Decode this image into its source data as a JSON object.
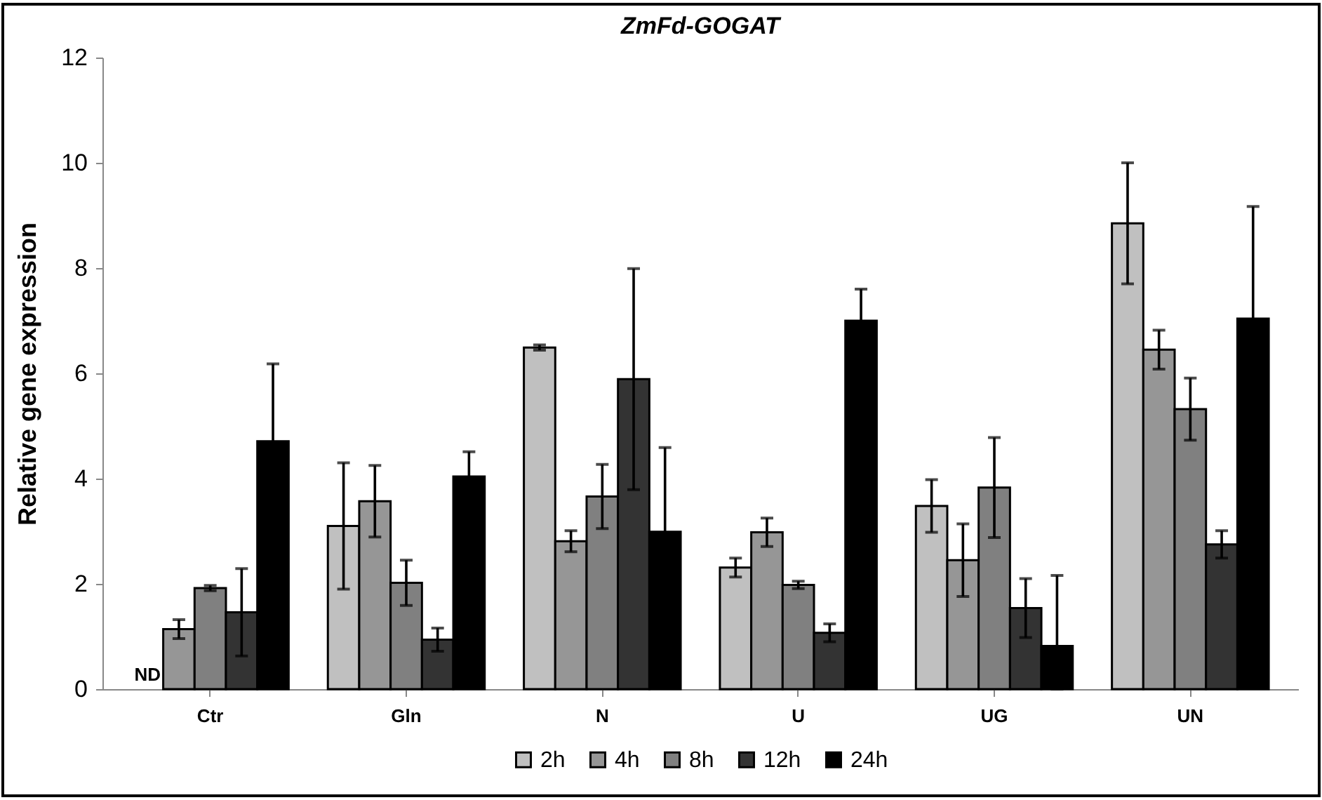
{
  "chart_data": {
    "type": "bar",
    "title": "ZmFd-GOGAT",
    "ylabel": "Relative gene expression",
    "categories": [
      "Ctr",
      "Gln",
      "N",
      "U",
      "UG",
      "UN"
    ],
    "series": [
      {
        "name": "2h",
        "color": "#c0c0c0",
        "values": [
          null,
          3.1,
          6.49,
          2.31,
          3.48,
          8.85
        ],
        "errors": [
          null,
          1.2,
          0.05,
          0.18,
          0.5,
          1.15
        ],
        "value_labels": [
          "ND",
          null,
          null,
          null,
          null,
          null
        ]
      },
      {
        "name": "4h",
        "color": "#969696",
        "values": [
          1.14,
          3.57,
          2.81,
          2.98,
          2.45,
          6.45
        ],
        "errors": [
          0.18,
          0.68,
          0.2,
          0.27,
          0.69,
          0.37
        ]
      },
      {
        "name": "8h",
        "color": "#808080",
        "values": [
          1.92,
          2.02,
          3.66,
          1.98,
          3.83,
          5.32
        ],
        "errors": [
          0.05,
          0.43,
          0.61,
          0.07,
          0.95,
          0.59
        ]
      },
      {
        "name": "12h",
        "color": "#333333",
        "values": [
          1.46,
          0.94,
          5.89,
          1.07,
          1.54,
          2.75
        ],
        "errors": [
          0.83,
          0.22,
          2.1,
          0.17,
          0.56,
          0.26
        ]
      },
      {
        "name": "24h",
        "color": "#000000",
        "values": [
          4.71,
          4.04,
          2.99,
          7.0,
          0.82,
          7.04
        ],
        "errors": [
          1.47,
          0.47,
          1.6,
          0.6,
          [
            0,
            2.16
          ],
          2.13
        ]
      }
    ],
    "ylim": [
      0,
      12
    ],
    "yticks": [
      0,
      2,
      4,
      6,
      8,
      10,
      12
    ],
    "grid": false,
    "legend": "bottom"
  }
}
